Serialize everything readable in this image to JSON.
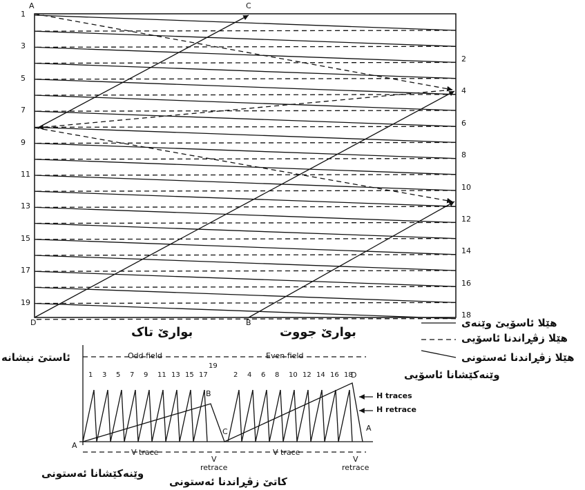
{
  "upper": {
    "corner_top_left": "A",
    "corner_top_mid": "C",
    "corner_bottom_left": "D",
    "corner_bottom_mid": "B",
    "left_lines": [
      "1",
      "3",
      "5",
      "7",
      "9",
      "11",
      "13",
      "15",
      "17",
      "19"
    ],
    "right_lines": [
      "2",
      "4",
      "6",
      "8",
      "10",
      "12",
      "14",
      "16",
      "18"
    ],
    "odd_field_label": "بوارێ تاک",
    "even_field_label": "بوارێ جووت"
  },
  "legend": [
    "هێلا ئاسۆیێ وێنەی",
    "هێلا زڤڕاندنا ئاسۆیی",
    "هێلا زڤڕاندنا ئەستونی",
    "وێنەکێشانا ئاسۆیی"
  ],
  "lower": {
    "signal_level": "ئاستێ نیشانە",
    "odd_field": "Odd field",
    "even_field": "Even field",
    "odd_lines": [
      "1",
      "3",
      "5",
      "7",
      "9",
      "11",
      "13",
      "15",
      "17"
    ],
    "odd_last": "19",
    "even_lines": [
      "2",
      "4",
      "6",
      "8",
      "10",
      "12",
      "14",
      "16",
      "18"
    ],
    "h_traces": "H traces",
    "h_retrace": "H retrace",
    "point_a_start": "A",
    "point_b": "B",
    "point_c": "C",
    "point_d": "D",
    "point_a_end": "A",
    "v_trace_1": "V trace",
    "v_trace_2": "V trace",
    "v_retrace_1": "V\nretrace",
    "v_retrace_2": "V\nretrace",
    "vertical_drawing": "وێنەکێشانا ئەستونی",
    "vertical_retrace_time": "کاتێ زڤڕاندنا ئەستونی"
  }
}
